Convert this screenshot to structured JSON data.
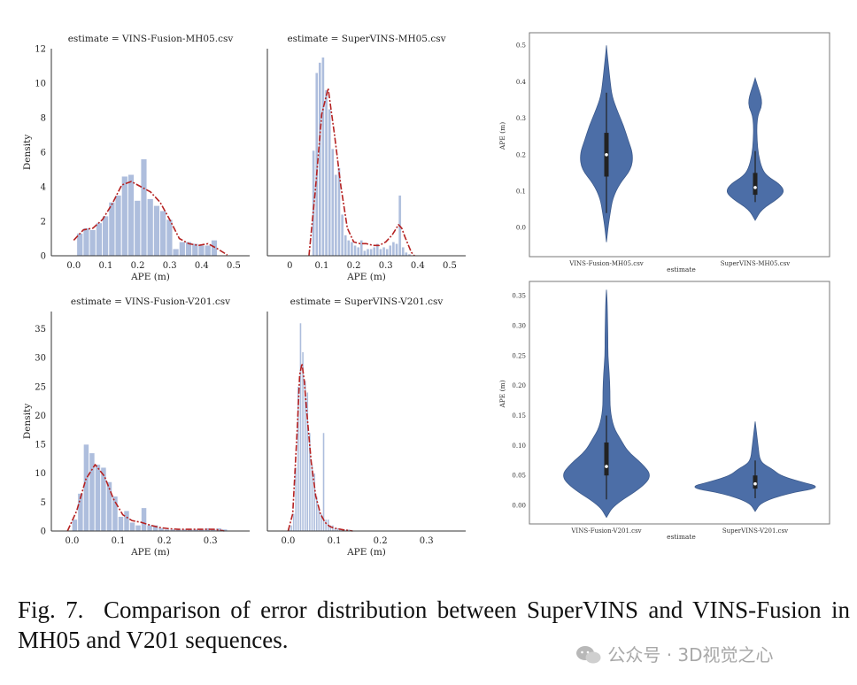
{
  "caption": {
    "text": "Fig. 7.  Comparison of error distribution between SuperVINS and VINS-Fusion in MH05 and V201 sequences."
  },
  "watermark": {
    "text": "公众号 · 3D视觉之心",
    "icon": "wechat-icon"
  },
  "colors": {
    "hist": "#aebedd",
    "kde": "#b52222",
    "violin": "#4c6ea7",
    "box": "#222222",
    "median": "#ffffff"
  },
  "chart_data": [
    {
      "type": "histogram",
      "id": "h1",
      "title": "estimate = VINS-Fusion-MH05.csv",
      "xlabel": "APE (m)",
      "ylabel": "Density",
      "xlim": [
        -0.07,
        0.55
      ],
      "ylim": [
        0,
        12
      ],
      "xticks": [
        0.0,
        0.1,
        0.2,
        0.3,
        0.4,
        0.5
      ],
      "xtick_labels": [
        "0.0",
        "0.1",
        "0.2",
        "0.3",
        "0.4",
        "0.5"
      ],
      "yticks": [
        0,
        2,
        4,
        6,
        8,
        10,
        12
      ],
      "ytick_labels": [
        "0",
        "2",
        "4",
        "6",
        "8",
        "10",
        "12"
      ],
      "bin_edges": [
        0.01,
        0.03,
        0.05,
        0.07,
        0.09,
        0.11,
        0.13,
        0.15,
        0.17,
        0.19,
        0.21,
        0.23,
        0.25,
        0.27,
        0.29,
        0.31,
        0.33,
        0.35,
        0.37,
        0.39,
        0.41,
        0.43,
        0.45
      ],
      "bin_values": [
        1.3,
        1.6,
        1.5,
        1.9,
        2.3,
        3.1,
        3.5,
        4.6,
        4.7,
        3.2,
        5.6,
        3.3,
        2.9,
        2.6,
        2.1,
        0.4,
        0.8,
        0.8,
        0.7,
        0.6,
        0.6,
        0.9
      ],
      "kde_x": [
        0.0,
        0.03,
        0.06,
        0.09,
        0.12,
        0.15,
        0.18,
        0.21,
        0.24,
        0.27,
        0.3,
        0.33,
        0.36,
        0.39,
        0.42,
        0.45,
        0.48
      ],
      "kde_y": [
        0.9,
        1.5,
        1.6,
        2.1,
        3.0,
        4.1,
        4.3,
        4.0,
        3.7,
        3.1,
        2.1,
        1.0,
        0.7,
        0.6,
        0.7,
        0.4,
        0.05
      ]
    },
    {
      "type": "histogram",
      "id": "h2",
      "title": "estimate = SuperVINS-MH05.csv",
      "xlabel": "APE (m)",
      "ylabel": "",
      "xlim": [
        -0.07,
        0.55
      ],
      "ylim": [
        0,
        12
      ],
      "xticks": [
        0.0,
        0.1,
        0.2,
        0.3,
        0.4,
        0.5
      ],
      "xtick_labels": [
        "0",
        "0.1",
        "0.2",
        "0.3",
        "0.4",
        "0.5"
      ],
      "yticks": [],
      "ytick_labels": [],
      "bin_edges": [
        0.07,
        0.08,
        0.09,
        0.1,
        0.11,
        0.12,
        0.13,
        0.14,
        0.15,
        0.16,
        0.17,
        0.18,
        0.19,
        0.2,
        0.21,
        0.22,
        0.23,
        0.24,
        0.25,
        0.26,
        0.27,
        0.28,
        0.29,
        0.3,
        0.31,
        0.32,
        0.33,
        0.34,
        0.35,
        0.36,
        0.37,
        0.38
      ],
      "bin_values": [
        6.1,
        10.6,
        11.2,
        11.5,
        9.6,
        8.5,
        6.2,
        4.7,
        5.1,
        2.4,
        1.2,
        0.9,
        0.8,
        0.6,
        0.5,
        0.9,
        0.3,
        0.4,
        0.4,
        0.5,
        0.7,
        0.4,
        0.5,
        0.4,
        0.6,
        0.8,
        0.7,
        3.5,
        0.5,
        0.2,
        0.1
      ],
      "kde_x": [
        0.06,
        0.08,
        0.1,
        0.12,
        0.14,
        0.16,
        0.18,
        0.2,
        0.22,
        0.24,
        0.26,
        0.28,
        0.3,
        0.32,
        0.34,
        0.35,
        0.36,
        0.38,
        0.39
      ],
      "kde_y": [
        0.0,
        3.8,
        8.2,
        9.7,
        7.0,
        4.0,
        1.6,
        0.8,
        0.7,
        0.7,
        0.6,
        0.6,
        0.8,
        1.2,
        1.8,
        1.6,
        1.1,
        0.2,
        0.0
      ]
    },
    {
      "type": "histogram",
      "id": "h3",
      "title": "estimate = VINS-Fusion-V201.csv",
      "xlabel": "APE (m)",
      "ylabel": "Density",
      "xlim": [
        -0.045,
        0.385
      ],
      "ylim": [
        0,
        38
      ],
      "xticks": [
        0.0,
        0.1,
        0.2,
        0.3
      ],
      "xtick_labels": [
        "0.0",
        "0.1",
        "0.2",
        "0.3"
      ],
      "yticks": [
        0,
        5,
        10,
        15,
        20,
        25,
        30,
        35
      ],
      "ytick_labels": [
        "0",
        "5",
        "10",
        "15",
        "20",
        "25",
        "30",
        "35"
      ],
      "bin_edges": [
        0.0,
        0.0125,
        0.025,
        0.0375,
        0.05,
        0.0625,
        0.075,
        0.0875,
        0.1,
        0.1125,
        0.125,
        0.1375,
        0.15,
        0.1625,
        0.175,
        0.1875,
        0.2,
        0.2125,
        0.225,
        0.2375,
        0.25,
        0.2625,
        0.275,
        0.2875,
        0.3,
        0.3125,
        0.325,
        0.3375
      ],
      "bin_values": [
        2.0,
        6.5,
        15.0,
        13.5,
        11.5,
        11.0,
        8.5,
        6.0,
        2.5,
        3.5,
        1.5,
        1.0,
        4.0,
        1.0,
        1.0,
        0.5,
        0.3,
        0.3,
        0.3,
        0.3,
        0.3,
        0.3,
        0.3,
        0.5,
        0.3,
        0.5,
        0.3
      ],
      "kde_x": [
        -0.01,
        0.01,
        0.03,
        0.05,
        0.07,
        0.09,
        0.11,
        0.13,
        0.15,
        0.17,
        0.19,
        0.21,
        0.23,
        0.25,
        0.27,
        0.29,
        0.31,
        0.33
      ],
      "kde_y": [
        0.0,
        3.5,
        9.0,
        11.5,
        9.5,
        5.5,
        2.8,
        1.8,
        1.5,
        1.0,
        0.6,
        0.4,
        0.3,
        0.3,
        0.3,
        0.3,
        0.3,
        0.0
      ]
    },
    {
      "type": "histogram",
      "id": "h4",
      "title": "estimate = SuperVINS-V201.csv",
      "xlabel": "APE (m)",
      "ylabel": "",
      "xlim": [
        -0.045,
        0.385
      ],
      "ylim": [
        0,
        38
      ],
      "xticks": [
        0.0,
        0.1,
        0.2,
        0.3
      ],
      "xtick_labels": [
        "0.0",
        "0.1",
        "0.2",
        "0.3"
      ],
      "yticks": [],
      "ytick_labels": [],
      "bin_edges": [
        0.0,
        0.005,
        0.01,
        0.015,
        0.02,
        0.025,
        0.03,
        0.035,
        0.04,
        0.045,
        0.05,
        0.055,
        0.06,
        0.065,
        0.07,
        0.075,
        0.08,
        0.085,
        0.09,
        0.095,
        0.1,
        0.105,
        0.11,
        0.115,
        0.12,
        0.125,
        0.13,
        0.135
      ],
      "bin_values": [
        0.5,
        1.0,
        3.0,
        11.0,
        25.0,
        36.0,
        31.0,
        26.0,
        24.0,
        17.0,
        11.5,
        10.0,
        6.0,
        4.0,
        3.0,
        17.0,
        2.0,
        2.0,
        1.0,
        1.0,
        0.5,
        0.5,
        0.5,
        0.3,
        0.3,
        0.3,
        0.3
      ],
      "kde_x": [
        0.0,
        0.01,
        0.02,
        0.025,
        0.03,
        0.035,
        0.04,
        0.05,
        0.06,
        0.07,
        0.08,
        0.09,
        0.1,
        0.12,
        0.14
      ],
      "kde_y": [
        0.0,
        3.0,
        18.0,
        27.0,
        29.0,
        26.0,
        21.0,
        12.0,
        6.0,
        3.0,
        1.5,
        0.8,
        0.5,
        0.2,
        0.0
      ]
    },
    {
      "type": "violin",
      "id": "v1",
      "xlabel": "estimate",
      "ylabel": "APE (m)",
      "ylim": [
        -0.07,
        0.52
      ],
      "yticks": [
        0.0,
        0.1,
        0.2,
        0.3,
        0.4,
        0.5
      ],
      "ytick_labels": [
        "0.0",
        "0.1",
        "0.2",
        "0.3",
        "0.4",
        "0.5"
      ],
      "categories": [
        "VINS-Fusion-MH05.csv",
        "SuperVINS-MH05.csv"
      ],
      "violins": [
        {
          "name": "VINS-Fusion-MH05.csv",
          "y": [
            -0.04,
            0.0,
            0.04,
            0.08,
            0.12,
            0.16,
            0.2,
            0.24,
            0.28,
            0.32,
            0.36,
            0.4,
            0.44,
            0.48,
            0.5
          ],
          "half_width": [
            0.0,
            0.05,
            0.12,
            0.2,
            0.42,
            0.8,
            0.86,
            0.7,
            0.55,
            0.35,
            0.18,
            0.12,
            0.07,
            0.02,
            0.0
          ],
          "q1": 0.14,
          "median": 0.2,
          "q3": 0.26,
          "whisker_low": 0.04,
          "whisker_high": 0.37
        },
        {
          "name": "SuperVINS-MH05.csv",
          "y": [
            0.02,
            0.05,
            0.08,
            0.1,
            0.12,
            0.14,
            0.16,
            0.2,
            0.24,
            0.28,
            0.31,
            0.33,
            0.35,
            0.37,
            0.39,
            0.41
          ],
          "half_width": [
            0.0,
            0.2,
            0.75,
            0.95,
            0.78,
            0.4,
            0.22,
            0.1,
            0.06,
            0.05,
            0.09,
            0.2,
            0.21,
            0.15,
            0.07,
            0.0
          ],
          "q1": 0.09,
          "median": 0.11,
          "q3": 0.15,
          "whisker_low": 0.07,
          "whisker_high": 0.21
        }
      ]
    },
    {
      "type": "violin",
      "id": "v2",
      "xlabel": "estimate",
      "ylabel": "APE (m)",
      "ylim": [
        -0.025,
        0.365
      ],
      "yticks": [
        0.0,
        0.05,
        0.1,
        0.15,
        0.2,
        0.25,
        0.3,
        0.35
      ],
      "ytick_labels": [
        "0.00",
        "0.05",
        "0.10",
        "0.15",
        "0.20",
        "0.25",
        "0.30",
        "0.35"
      ],
      "categories": [
        "VINS-Fusion-V201.csv",
        "SuperVINS-V201.csv"
      ],
      "violins": [
        {
          "name": "VINS-Fusion-V201.csv",
          "y": [
            -0.02,
            0.0,
            0.03,
            0.05,
            0.07,
            0.09,
            0.11,
            0.13,
            0.16,
            0.19,
            0.22,
            0.25,
            0.28,
            0.31,
            0.34,
            0.36
          ],
          "half_width": [
            0.0,
            0.1,
            0.5,
            0.64,
            0.5,
            0.3,
            0.2,
            0.1,
            0.05,
            0.05,
            0.04,
            0.02,
            0.02,
            0.015,
            0.01,
            0.0
          ],
          "q1": 0.05,
          "median": 0.065,
          "q3": 0.105,
          "whisker_low": 0.01,
          "whisker_high": 0.15
        },
        {
          "name": "SuperVINS-V201.csv",
          "y": [
            -0.01,
            0.005,
            0.02,
            0.03,
            0.04,
            0.05,
            0.06,
            0.07,
            0.08,
            0.09,
            0.1,
            0.12,
            0.14
          ],
          "half_width": [
            0.0,
            0.08,
            0.45,
            0.95,
            0.62,
            0.35,
            0.25,
            0.1,
            0.06,
            0.05,
            0.04,
            0.02,
            0.0
          ],
          "q1": 0.028,
          "median": 0.036,
          "q3": 0.05,
          "whisker_low": 0.012,
          "whisker_high": 0.075
        }
      ]
    }
  ]
}
